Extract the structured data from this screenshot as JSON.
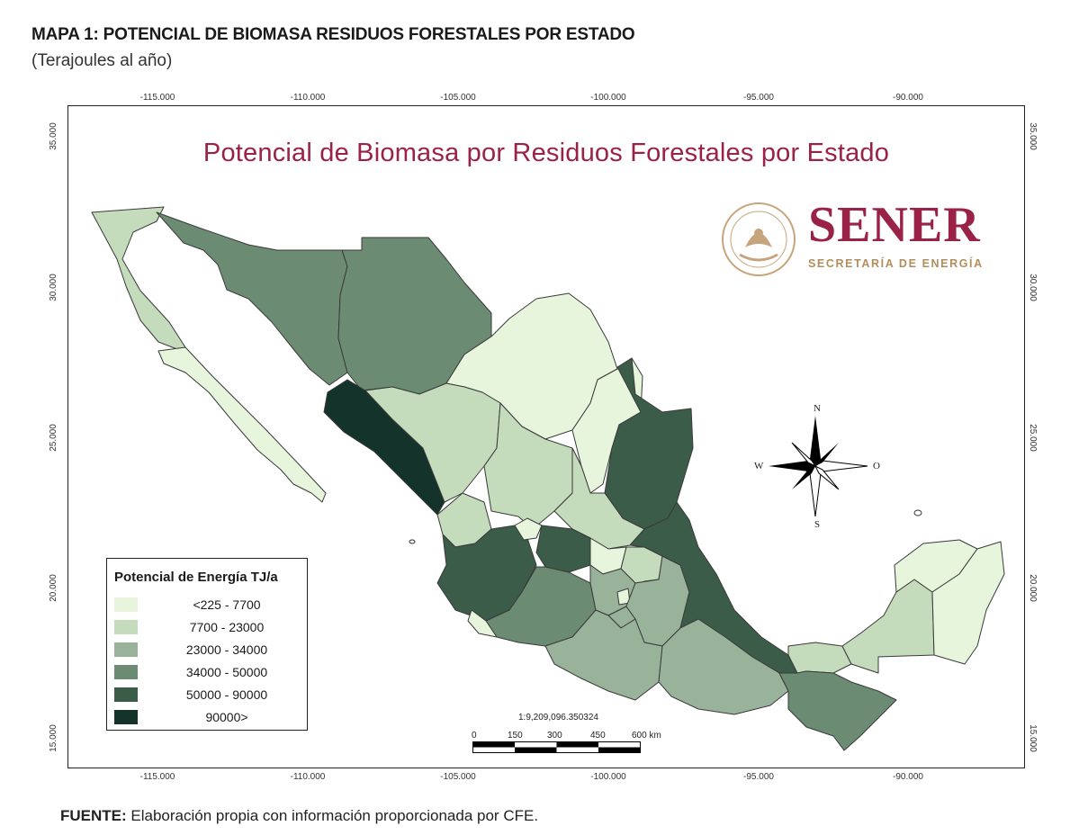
{
  "header": {
    "title": "MAPA 1: POTENCIAL DE BIOMASA RESIDUOS FORESTALES POR ESTADO",
    "subtitle": "(Terajoules al año)"
  },
  "map": {
    "title": "Potencial de Biomasa por Residuos Forestales por Estado",
    "lon_ticks": [
      "-115.000",
      "-110.000",
      "-105.000",
      "-100.000",
      "-95.000",
      "-90.000"
    ],
    "lat_ticks": [
      "35.000",
      "30.000",
      "25.000",
      "20.000",
      "15.000"
    ],
    "scale_ratio": "1:9,209,096.350324",
    "scale_labels": [
      "0",
      "150",
      "300",
      "450",
      "600 km"
    ],
    "compass": {
      "n": "N",
      "s": "S",
      "e": "O",
      "w": "W"
    },
    "logo": {
      "name": "SENER",
      "subtitle": "SECRETARÍA DE ENERGÍA"
    }
  },
  "legend": {
    "title": "Potencial de Energía TJ/a",
    "classes": [
      {
        "label": "<225 - 7700",
        "color": "#e6f5dc"
      },
      {
        "label": "7700 - 23000",
        "color": "#c4dbbc"
      },
      {
        "label": "23000 - 34000",
        "color": "#99b39b"
      },
      {
        "label": "34000 - 50000",
        "color": "#6b8c73"
      },
      {
        "label": "50000 - 90000",
        "color": "#3c5c4a"
      },
      {
        "label": "90000>",
        "color": "#14332a"
      }
    ]
  },
  "source": {
    "label": "FUENTE:",
    "text": " Elaboración propia con información proporcionada por CFE."
  }
}
